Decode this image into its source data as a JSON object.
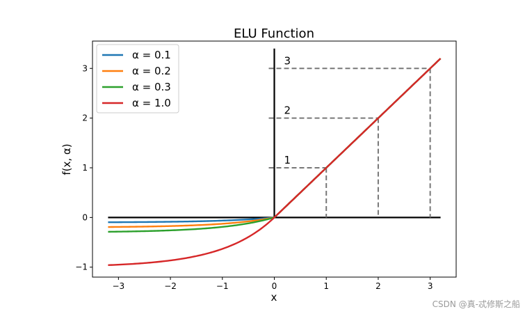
{
  "chart_data": {
    "type": "line",
    "title": "ELU Function",
    "xlabel": "x",
    "ylabel": "f(x, α)",
    "xlim": [
      -3.5,
      3.5
    ],
    "ylim": [
      -1.2,
      3.55
    ],
    "xticks": [
      -3,
      -2,
      -1,
      0,
      1,
      2,
      3
    ],
    "xtick_labels": [
      "−3",
      "−2",
      "−1",
      "0",
      "1",
      "2",
      "3"
    ],
    "yticks": [
      -1,
      0,
      1,
      2,
      3
    ],
    "ytick_labels": [
      "−1",
      "0",
      "1",
      "2",
      "3"
    ],
    "x_range": [
      -3.2,
      3.2
    ],
    "legend_position": "upper-left",
    "series": [
      {
        "name": "α = 0.1",
        "alpha": 0.1,
        "color": "#1f77b4"
      },
      {
        "name": "α = 0.2",
        "alpha": 0.2,
        "color": "#ff7f0e"
      },
      {
        "name": "α = 0.3",
        "alpha": 0.3,
        "color": "#2ca02c"
      },
      {
        "name": "α = 1.0",
        "alpha": 1.0,
        "color": "#d62728"
      }
    ],
    "reference_lines": {
      "color": "#000000",
      "horizontal_x_range": [
        -3.2,
        3.2
      ],
      "vertical_y_range": [
        0,
        3.4
      ]
    },
    "guides": [
      {
        "x": 1,
        "y": 1,
        "label": "1"
      },
      {
        "x": 2,
        "y": 2,
        "label": "2"
      },
      {
        "x": 3,
        "y": 3,
        "label": "3"
      }
    ],
    "guide_color": "#777777"
  },
  "watermark": "CSDN @真-忒修斯之船"
}
